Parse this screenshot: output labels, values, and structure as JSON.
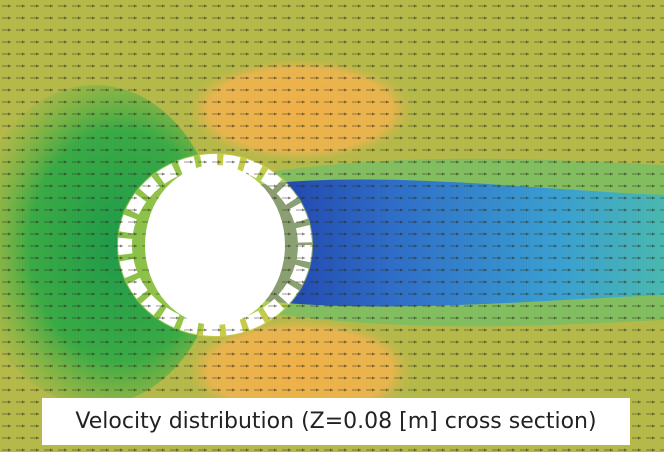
{
  "caption": "Velocity distribution (Z=0.08 [m] cross section)"
}
